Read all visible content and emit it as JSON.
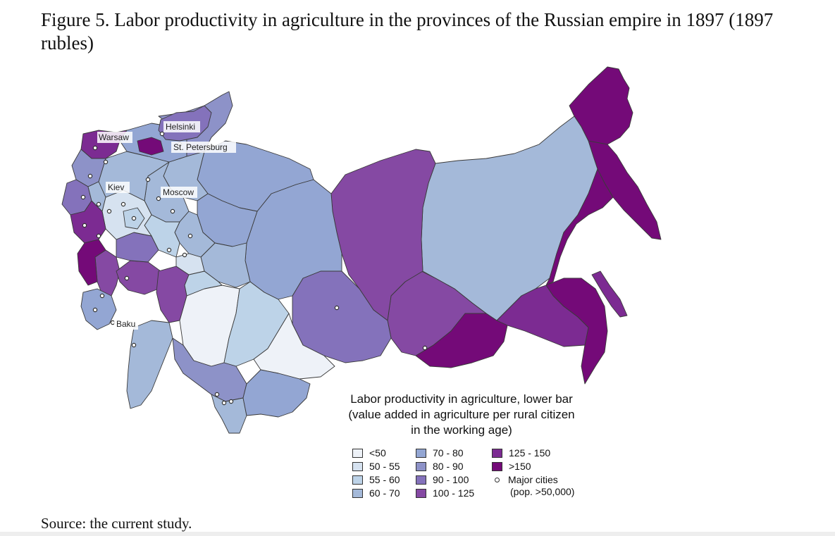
{
  "figure": {
    "title": "Figure 5. Labor productivity in agriculture in the provinces of the Russian empire in 1897 (1897 rubles)",
    "source": "Source: the current study."
  },
  "colors": {
    "lt50": "#eef2f8",
    "c50_55": "#d6e2f0",
    "c55_60": "#bdd3e8",
    "c60_70": "#a4b9d9",
    "c70_80": "#93a6d3",
    "c80_90": "#8d92c8",
    "c90_100": "#8472bb",
    "c100_125": "#8549a3",
    "c125_150": "#7c2b92",
    "gt150": "#740a78",
    "border": "#3a3a3a"
  },
  "cities": [
    {
      "name": "Helsinki"
    },
    {
      "name": "Warsaw"
    },
    {
      "name": "St. Petersburg"
    },
    {
      "name": "Kiev"
    },
    {
      "name": "Moscow"
    },
    {
      "name": "Baku"
    }
  ],
  "legend": {
    "title_line1": "Labor productivity in agriculture, lower bar",
    "title_line2": "(value added in agriculture per rural citizen",
    "title_line3": "in the working age)",
    "items": [
      {
        "label": "<50",
        "color": "#eef2f8"
      },
      {
        "label": "50 - 55",
        "color": "#d6e2f0"
      },
      {
        "label": "55 - 60",
        "color": "#bdd3e8"
      },
      {
        "label": "60 - 70",
        "color": "#a4b9d9"
      },
      {
        "label": "70 - 80",
        "color": "#93a6d3"
      },
      {
        "label": "80 - 90",
        "color": "#8d92c8"
      },
      {
        "label": "90 - 100",
        "color": "#8472bb"
      },
      {
        "label": "100 - 125",
        "color": "#8549a3"
      },
      {
        "label": "125 - 150",
        "color": "#7c2b92"
      },
      {
        "label": ">150",
        "color": "#740a78"
      }
    ],
    "cities_label_line1": "Major cities",
    "cities_label_line2": "(pop. >50,000)"
  }
}
